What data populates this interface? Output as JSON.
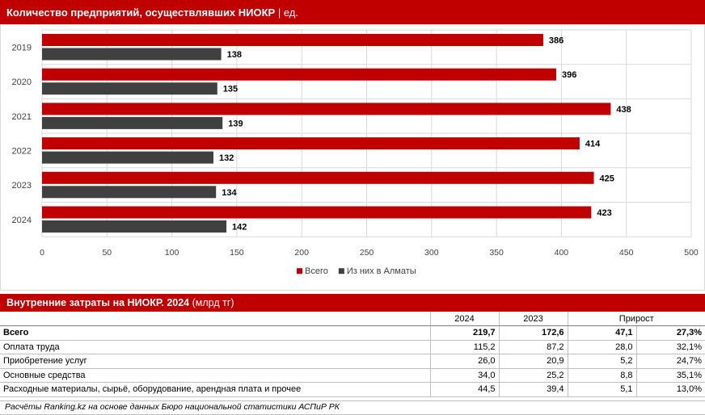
{
  "header": {
    "title": "Количество предприятий, осуществлявших НИОКР",
    "unit": "| ед."
  },
  "chart_data": {
    "type": "bar",
    "orientation": "horizontal",
    "categories": [
      "2019",
      "2020",
      "2021",
      "2022",
      "2023",
      "2024"
    ],
    "series": [
      {
        "name": "Всего",
        "color": "#c00000",
        "values": [
          386,
          396,
          438,
          414,
          425,
          423
        ]
      },
      {
        "name": "Из них в Алматы",
        "color": "#404040",
        "values": [
          138,
          135,
          139,
          132,
          134,
          142
        ]
      }
    ],
    "x_ticks": [
      "0",
      "50",
      "100",
      "150",
      "200",
      "250",
      "300",
      "350",
      "400",
      "450",
      "500"
    ],
    "xlim": [
      0,
      500
    ],
    "grid": true,
    "legend_position": "bottom"
  },
  "table": {
    "title_bold": "Внутренние затраты на НИОКР. 2024",
    "title_rest": "(млрд тг)",
    "headers": {
      "y2024": "2024",
      "y2023": "2023",
      "growth": "Прирост"
    },
    "rows": [
      {
        "label": "Всего",
        "v2024": "219,7",
        "v2023": "172,6",
        "abs": "47,1",
        "pct": "27,3%"
      },
      {
        "label": "Оплата труда",
        "v2024": "115,2",
        "v2023": "87,2",
        "abs": "28,0",
        "pct": "32,1%"
      },
      {
        "label": "Приобретение услуг",
        "v2024": "26,0",
        "v2023": "20,9",
        "abs": "5,2",
        "pct": "24,7%"
      },
      {
        "label": "Основные средства",
        "v2024": "34,0",
        "v2023": "25,2",
        "abs": "8,8",
        "pct": "35,1%"
      },
      {
        "label": "Расходные материалы, сырьё, оборудование, арендная плата и прочее",
        "v2024": "44,5",
        "v2023": "39,4",
        "abs": "5,1",
        "pct": "13,0%"
      }
    ]
  },
  "source": "Расчёты Ranking.kz на основе данных Бюро национальной статистики АСПиР РК"
}
